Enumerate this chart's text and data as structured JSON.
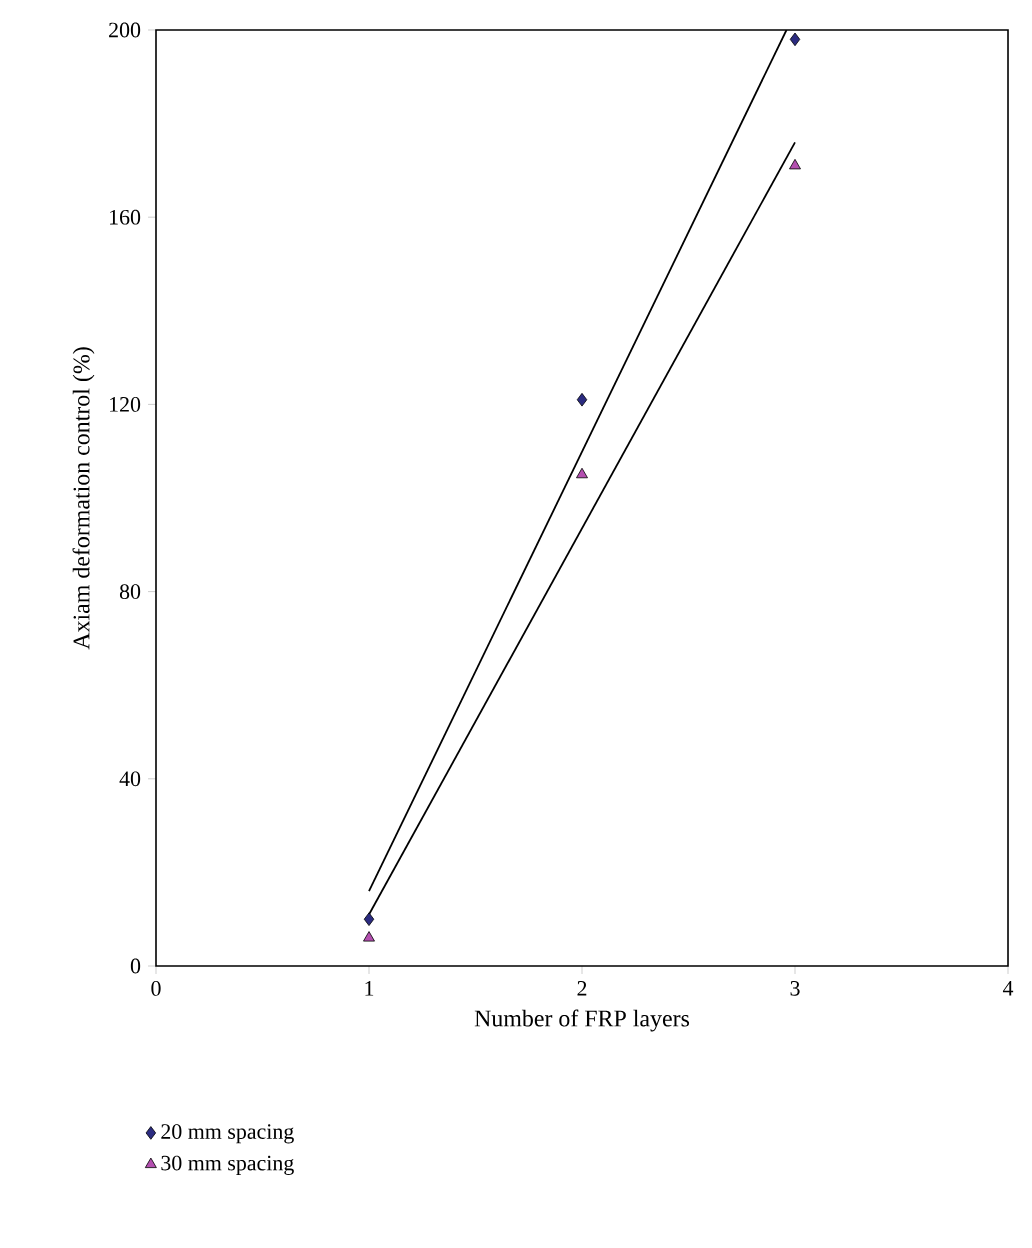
{
  "chart_data": {
    "type": "scatter",
    "xlabel": "Number of FRP layers",
    "ylabel": "Axiam deformation control (%)",
    "xlim": [
      0,
      4
    ],
    "ylim": [
      0,
      200
    ],
    "xticks": [
      0,
      1,
      2,
      3,
      4
    ],
    "yticks": [
      0,
      40,
      80,
      120,
      160,
      200
    ],
    "legend": "bottom left",
    "grid": false,
    "series": [
      {
        "name": "20 mm spacing",
        "color": "#2b2b80",
        "marker": "diamond",
        "x": [
          1,
          2,
          3
        ],
        "values": [
          10,
          121,
          198
        ]
      },
      {
        "name": "30 mm spacing",
        "color": "#b44fb0",
        "marker": "triangle",
        "x": [
          1,
          2,
          3
        ],
        "values": [
          6,
          105,
          171
        ]
      },
      {
        "type": "line",
        "color": "#000000",
        "marker": "none",
        "x": [
          1,
          2.96
        ],
        "values": [
          16,
          200
        ]
      },
      {
        "type": "line",
        "color": "#000000",
        "marker": "none",
        "x": [
          1,
          3
        ],
        "values": [
          11,
          176
        ]
      }
    ]
  }
}
